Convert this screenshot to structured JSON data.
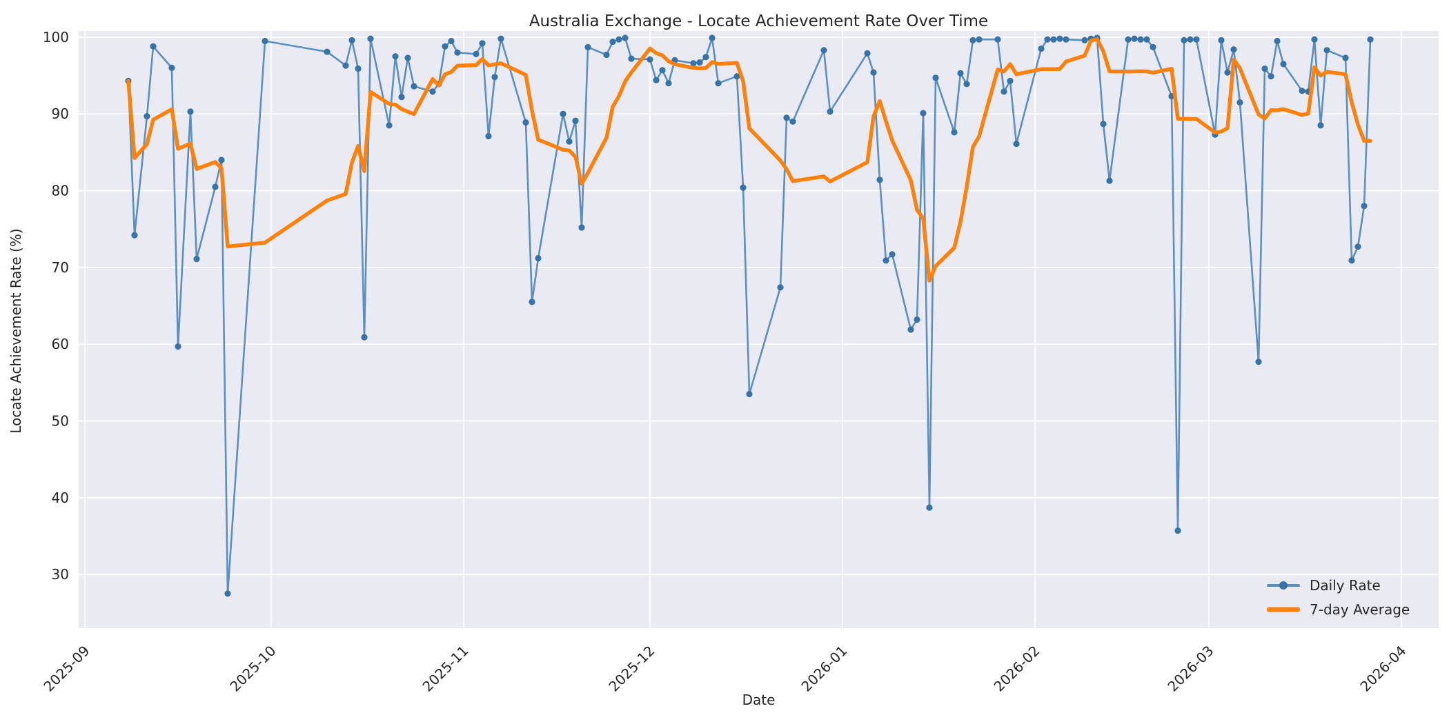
{
  "chart_data": {
    "type": "line",
    "title": "Australia Exchange - Locate Achievement Rate Over Time",
    "xlabel": "Date",
    "ylabel": "Locate Achievement Rate (%)",
    "grid": true,
    "legend_position": "lower right",
    "background": {
      "figure": "#ffffff",
      "axes": "#eaeaf2",
      "gridline": "#ffffff",
      "text": "#262626"
    },
    "xlim": [
      "2025-08-31",
      "2026-04-07"
    ],
    "ylim": [
      23.0,
      100.8
    ],
    "y_ticks": [
      30,
      40,
      50,
      60,
      70,
      80,
      90,
      100
    ],
    "x_ticks": [
      {
        "date": "2025-09-01",
        "label": "2025-09"
      },
      {
        "date": "2025-10-01",
        "label": "2025-10"
      },
      {
        "date": "2025-11-01",
        "label": "2025-11"
      },
      {
        "date": "2025-12-01",
        "label": "2025-12"
      },
      {
        "date": "2026-01-01",
        "label": "2026-01"
      },
      {
        "date": "2026-02-01",
        "label": "2026-02"
      },
      {
        "date": "2026-03-01",
        "label": "2026-03"
      },
      {
        "date": "2026-04-01",
        "label": "2026-04"
      }
    ],
    "series": [
      {
        "name": "Daily Rate",
        "style": "line+markers",
        "line_color": "#5a8fc0",
        "marker_color": "#3773a6",
        "dates": [
          "2025-09-08",
          "2025-09-09",
          "2025-09-11",
          "2025-09-12",
          "2025-09-15",
          "2025-09-16",
          "2025-09-18",
          "2025-09-19",
          "2025-09-22",
          "2025-09-23",
          "2025-09-24",
          "2025-09-30",
          "2025-10-10",
          "2025-10-13",
          "2025-10-14",
          "2025-10-15",
          "2025-10-16",
          "2025-10-17",
          "2025-10-20",
          "2025-10-21",
          "2025-10-22",
          "2025-10-23",
          "2025-10-24",
          "2025-10-27",
          "2025-10-28",
          "2025-10-29",
          "2025-10-30",
          "2025-10-31",
          "2025-11-03",
          "2025-11-04",
          "2025-11-05",
          "2025-11-06",
          "2025-11-07",
          "2025-11-11",
          "2025-11-12",
          "2025-11-13",
          "2025-11-17",
          "2025-11-18",
          "2025-11-19",
          "2025-11-20",
          "2025-11-21",
          "2025-11-24",
          "2025-11-25",
          "2025-11-26",
          "2025-11-27",
          "2025-11-28",
          "2025-12-01",
          "2025-12-02",
          "2025-12-03",
          "2025-12-04",
          "2025-12-05",
          "2025-12-08",
          "2025-12-09",
          "2025-12-10",
          "2025-12-11",
          "2025-12-12",
          "2025-12-15",
          "2025-12-16",
          "2025-12-17",
          "2025-12-22",
          "2025-12-23",
          "2025-12-24",
          "2025-12-29",
          "2025-12-30",
          "2026-01-05",
          "2026-01-06",
          "2026-01-07",
          "2026-01-08",
          "2026-01-09",
          "2026-01-12",
          "2026-01-13",
          "2026-01-14",
          "2026-01-15",
          "2026-01-16",
          "2026-01-19",
          "2026-01-20",
          "2026-01-21",
          "2026-01-22",
          "2026-01-23",
          "2026-01-26",
          "2026-01-27",
          "2026-01-28",
          "2026-01-29",
          "2026-02-02",
          "2026-02-03",
          "2026-02-04",
          "2026-02-05",
          "2026-02-06",
          "2026-02-09",
          "2026-02-10",
          "2026-02-11",
          "2026-02-12",
          "2026-02-13",
          "2026-02-16",
          "2026-02-17",
          "2026-02-18",
          "2026-02-19",
          "2026-02-20",
          "2026-02-23",
          "2026-02-24",
          "2026-02-25",
          "2026-02-26",
          "2026-02-27",
          "2026-03-02",
          "2026-03-03",
          "2026-03-04",
          "2026-03-05",
          "2026-03-06",
          "2026-03-09",
          "2026-03-10",
          "2026-03-11",
          "2026-03-12",
          "2026-03-13",
          "2026-03-16",
          "2026-03-17",
          "2026-03-18",
          "2026-03-19",
          "2026-03-20",
          "2026-03-23",
          "2026-03-24",
          "2026-03-25",
          "2026-03-26",
          "2026-03-27"
        ],
        "values": [
          94.3,
          74.2,
          89.7,
          98.8,
          96.0,
          59.7,
          90.3,
          71.1,
          80.5,
          84.0,
          27.5,
          99.5,
          98.1,
          96.3,
          99.6,
          95.9,
          60.9,
          99.8,
          88.5,
          97.5,
          92.2,
          97.3,
          93.6,
          92.9,
          93.9,
          98.8,
          99.5,
          98.0,
          97.8,
          99.2,
          87.1,
          94.8,
          99.8,
          88.9,
          65.5,
          71.2,
          90.0,
          86.4,
          89.1,
          75.2,
          98.7,
          97.7,
          99.4,
          99.7,
          99.9,
          97.2,
          97.1,
          94.4,
          95.7,
          94.0,
          97.0,
          96.6,
          96.7,
          97.4,
          99.9,
          94.0,
          94.9,
          80.4,
          53.5,
          67.4,
          89.5,
          89.0,
          98.3,
          90.3,
          97.9,
          95.4,
          81.4,
          70.9,
          71.7,
          61.9,
          63.2,
          90.1,
          38.7,
          94.7,
          87.6,
          95.3,
          93.9,
          99.6,
          99.7,
          99.7,
          92.9,
          94.3,
          86.1,
          98.5,
          99.7,
          99.7,
          99.8,
          99.7,
          99.6,
          99.8,
          99.9,
          88.7,
          81.3,
          99.7,
          99.8,
          99.7,
          99.7,
          98.7,
          92.3,
          35.7,
          99.6,
          99.7,
          99.7,
          87.3,
          99.6,
          95.4,
          98.4,
          91.5,
          57.7,
          95.9,
          94.9,
          99.5,
          96.5,
          93.0,
          92.9,
          99.7,
          88.5,
          98.3,
          97.3,
          70.9,
          72.7,
          78.0,
          99.7
        ]
      },
      {
        "name": "7-day Average",
        "style": "line",
        "line_color": "#fd810d",
        "derived": "rolling mean of last 7 Daily Rate points (min periods 1)",
        "window": 7
      }
    ]
  },
  "legend": {
    "daily_label": "Daily Rate",
    "avg_label": "7-day Average"
  }
}
